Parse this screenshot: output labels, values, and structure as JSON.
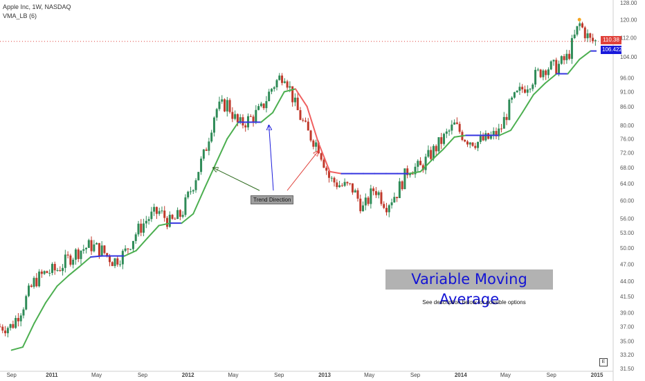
{
  "legend": {
    "symbol_line": "Apple Inc, 1W, NASDAQ",
    "indicator_line": "VMA_LB (6)"
  },
  "annotations": {
    "main_title": "Variable Moving Average",
    "subtitle": "See description below for possible options",
    "trend_label": "Trend Direction",
    "exchange_badge": "E"
  },
  "price_tags": {
    "last_price": "110.38",
    "vma_value": "106.4220"
  },
  "colors": {
    "up_candle": "#2e8b57",
    "down_candle": "#c0392b",
    "vma_up": "#4caf50",
    "vma_down": "#f06060",
    "vma_flat": "#3535e0",
    "last_price_tag": "#e0413a",
    "vma_tag": "#1a1adb",
    "title_box": "#b2b2b2",
    "title_text": "#1414d4"
  },
  "chart_data": {
    "type": "line",
    "title": "Variable Moving Average",
    "y_scale": "log",
    "ylim": [
      31.5,
      128.0
    ],
    "y_ticks": [
      "128.00",
      "120.00",
      "112.00",
      "104.00",
      "96.00",
      "91.00",
      "86.00",
      "80.00",
      "76.00",
      "72.00",
      "68.00",
      "64.00",
      "60.00",
      "56.00",
      "53.00",
      "50.00",
      "47.00",
      "44.00",
      "41.50",
      "39.00",
      "37.00",
      "35.00",
      "33.20",
      "31.50"
    ],
    "x_ticks": [
      "Sep",
      "2011",
      "May",
      "Sep",
      "2012",
      "May",
      "Sep",
      "2013",
      "May",
      "Sep",
      "2014",
      "May",
      "Sep",
      "2015"
    ],
    "grid": false,
    "vma_series": [
      {
        "date": "2010-09",
        "value": 33.8
      },
      {
        "date": "2010-10",
        "value": 34.2
      },
      {
        "date": "2010-11",
        "value": 37.5
      },
      {
        "date": "2010-12",
        "value": 40.5
      },
      {
        "date": "2011-01",
        "value": 43.2
      },
      {
        "date": "2011-02",
        "value": 45.0
      },
      {
        "date": "2011-03",
        "value": 46.5
      },
      {
        "date": "2011-04",
        "value": 48.3
      },
      {
        "date": "2011-05",
        "value": 48.5
      },
      {
        "date": "2011-06",
        "value": 48.5
      },
      {
        "date": "2011-07",
        "value": 48.5
      },
      {
        "date": "2011-08",
        "value": 49.5
      },
      {
        "date": "2011-09",
        "value": 52.0
      },
      {
        "date": "2011-10",
        "value": 54.5
      },
      {
        "date": "2011-11",
        "value": 55.0
      },
      {
        "date": "2011-12",
        "value": 55.0
      },
      {
        "date": "2012-01",
        "value": 57.0
      },
      {
        "date": "2012-02",
        "value": 63.0
      },
      {
        "date": "2012-03",
        "value": 69.0
      },
      {
        "date": "2012-04",
        "value": 76.0
      },
      {
        "date": "2012-05",
        "value": 81.0
      },
      {
        "date": "2012-06",
        "value": 81.0
      },
      {
        "date": "2012-07",
        "value": 81.0
      },
      {
        "date": "2012-08",
        "value": 84.0
      },
      {
        "date": "2012-09",
        "value": 91.0
      },
      {
        "date": "2012-10",
        "value": 92.0
      },
      {
        "date": "2012-11",
        "value": 86.0
      },
      {
        "date": "2012-12",
        "value": 75.0
      },
      {
        "date": "2013-01",
        "value": 67.0
      },
      {
        "date": "2013-02",
        "value": 66.5
      },
      {
        "date": "2013-03",
        "value": 66.5
      },
      {
        "date": "2013-04",
        "value": 66.5
      },
      {
        "date": "2013-05",
        "value": 66.5
      },
      {
        "date": "2013-06",
        "value": 66.5
      },
      {
        "date": "2013-07",
        "value": 66.5
      },
      {
        "date": "2013-08",
        "value": 66.5
      },
      {
        "date": "2013-09",
        "value": 67.0
      },
      {
        "date": "2013-10",
        "value": 70.0
      },
      {
        "date": "2013-11",
        "value": 73.0
      },
      {
        "date": "2013-12",
        "value": 76.5
      },
      {
        "date": "2014-01",
        "value": 77.0
      },
      {
        "date": "2014-02",
        "value": 77.0
      },
      {
        "date": "2014-03",
        "value": 77.0
      },
      {
        "date": "2014-04",
        "value": 77.0
      },
      {
        "date": "2014-05",
        "value": 78.5
      },
      {
        "date": "2014-06",
        "value": 84.0
      },
      {
        "date": "2014-07",
        "value": 90.0
      },
      {
        "date": "2014-08",
        "value": 94.0
      },
      {
        "date": "2014-09",
        "value": 97.5
      },
      {
        "date": "2014-10",
        "value": 97.5
      },
      {
        "date": "2014-11",
        "value": 103.0
      },
      {
        "date": "2014-12",
        "value": 106.4
      }
    ],
    "price_series": [
      {
        "date": "2010-09",
        "value": 37.0
      },
      {
        "date": "2010-10",
        "value": 40.0
      },
      {
        "date": "2010-11",
        "value": 44.0
      },
      {
        "date": "2010-12",
        "value": 45.5
      },
      {
        "date": "2011-01",
        "value": 46.0
      },
      {
        "date": "2011-02",
        "value": 48.0
      },
      {
        "date": "2011-03",
        "value": 49.5
      },
      {
        "date": "2011-04",
        "value": 50.5
      },
      {
        "date": "2011-05",
        "value": 49.5
      },
      {
        "date": "2011-06",
        "value": 47.5
      },
      {
        "date": "2011-07",
        "value": 49.0
      },
      {
        "date": "2011-08",
        "value": 53.0
      },
      {
        "date": "2011-09",
        "value": 56.0
      },
      {
        "date": "2011-10",
        "value": 57.5
      },
      {
        "date": "2011-11",
        "value": 55.0
      },
      {
        "date": "2011-12",
        "value": 57.0
      },
      {
        "date": "2012-01",
        "value": 64.0
      },
      {
        "date": "2012-02",
        "value": 72.0
      },
      {
        "date": "2012-03",
        "value": 85.0
      },
      {
        "date": "2012-04",
        "value": 87.0
      },
      {
        "date": "2012-05",
        "value": 80.0
      },
      {
        "date": "2012-06",
        "value": 82.0
      },
      {
        "date": "2012-07",
        "value": 85.0
      },
      {
        "date": "2012-08",
        "value": 93.0
      },
      {
        "date": "2012-09",
        "value": 98.0
      },
      {
        "date": "2012-10",
        "value": 86.0
      },
      {
        "date": "2012-11",
        "value": 78.0
      },
      {
        "date": "2012-12",
        "value": 74.0
      },
      {
        "date": "2013-01",
        "value": 65.0
      },
      {
        "date": "2013-02",
        "value": 63.5
      },
      {
        "date": "2013-03",
        "value": 63.0
      },
      {
        "date": "2013-04",
        "value": 58.0
      },
      {
        "date": "2013-05",
        "value": 63.0
      },
      {
        "date": "2013-06",
        "value": 59.0
      },
      {
        "date": "2013-07",
        "value": 62.0
      },
      {
        "date": "2013-08",
        "value": 68.0
      },
      {
        "date": "2013-09",
        "value": 68.0
      },
      {
        "date": "2013-10",
        "value": 72.0
      },
      {
        "date": "2013-11",
        "value": 76.0
      },
      {
        "date": "2013-12",
        "value": 80.0
      },
      {
        "date": "2014-01",
        "value": 76.0
      },
      {
        "date": "2014-02",
        "value": 75.0
      },
      {
        "date": "2014-03",
        "value": 76.0
      },
      {
        "date": "2014-04",
        "value": 78.0
      },
      {
        "date": "2014-05",
        "value": 87.0
      },
      {
        "date": "2014-06",
        "value": 92.0
      },
      {
        "date": "2014-07",
        "value": 96.0
      },
      {
        "date": "2014-08",
        "value": 100.0
      },
      {
        "date": "2014-09",
        "value": 100.0
      },
      {
        "date": "2014-10",
        "value": 104.0
      },
      {
        "date": "2014-11",
        "value": 118.0
      },
      {
        "date": "2014-12",
        "value": 110.4
      }
    ]
  }
}
